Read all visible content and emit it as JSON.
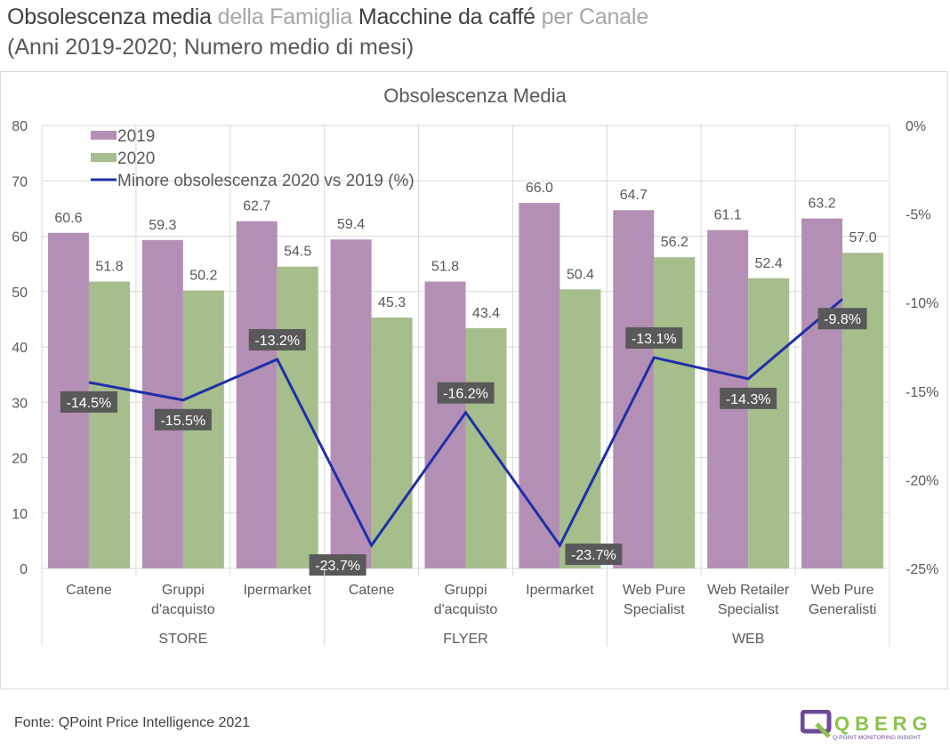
{
  "header": {
    "title_parts": [
      {
        "text": "Obsolescenza media",
        "style": "bold"
      },
      {
        "text": " della Famiglia ",
        "style": "light"
      },
      {
        "text": "Macchine da caffé",
        "style": "bold"
      },
      {
        "text": " per Canale",
        "style": "light"
      }
    ],
    "subtitle": "(Anni 2019-2020; Numero medio di mesi)"
  },
  "footer": {
    "source": "Fonte: QPoint Price Intelligence 2021",
    "logo_text": "QBERG",
    "logo_tagline": "Q-POINT MONITORING INSIGHT"
  },
  "colors": {
    "series_2019": "#b48fb5",
    "series_2020": "#a6bd8c",
    "line": "#1f2fa8",
    "label_box": "#595959",
    "grid": "#d9d9d9"
  },
  "chart_data": {
    "type": "bar",
    "title": "Obsolescenza Media",
    "groups": [
      {
        "name": "STORE",
        "categories": [
          "Catene",
          "Gruppi d'acquisto",
          "Ipermarket"
        ]
      },
      {
        "name": "FLYER",
        "categories": [
          "Catene",
          "Gruppi d'acquisto",
          "Ipermarket"
        ]
      },
      {
        "name": "WEB",
        "categories": [
          "Web Pure Specialist",
          "Web Retailer Specialist",
          "Web Pure Generalisti"
        ]
      }
    ],
    "categories": [
      [
        "Catene"
      ],
      [
        "Gruppi",
        "d'acquisto"
      ],
      [
        "Ipermarket"
      ],
      [
        "Catene"
      ],
      [
        "Gruppi",
        "d'acquisto"
      ],
      [
        "Ipermarket"
      ],
      [
        "Web Pure",
        "Specialist"
      ],
      [
        "Web Retailer",
        "Specialist"
      ],
      [
        "Web Pure",
        "Generalisti"
      ]
    ],
    "series": [
      {
        "name": "2019",
        "type": "bar",
        "axis": "left",
        "values": [
          60.6,
          59.3,
          62.7,
          59.4,
          51.8,
          66.0,
          64.7,
          61.1,
          63.2
        ],
        "labels": [
          "60.6",
          "59.3",
          "62.7",
          "59.4",
          "51.8",
          "66.0",
          "64.7",
          "61.1",
          "63.2"
        ]
      },
      {
        "name": "2020",
        "type": "bar",
        "axis": "left",
        "values": [
          51.8,
          50.2,
          54.5,
          45.3,
          43.4,
          50.4,
          56.2,
          52.4,
          57.0
        ],
        "labels": [
          "51.8",
          "50.2",
          "54.5",
          "45.3",
          "43.4",
          "50.4",
          "56.2",
          "52.4",
          "57.0"
        ]
      },
      {
        "name": "Minore obsolescenza 2020 vs 2019 (%)",
        "type": "line",
        "axis": "right",
        "values": [
          -14.5,
          -15.5,
          -13.2,
          -23.7,
          -16.2,
          -23.7,
          -13.1,
          -14.3,
          -9.8
        ],
        "labels": [
          "-14.5%",
          "-15.5%",
          "-13.2%",
          "-23.7%",
          "-16.2%",
          "-23.7%",
          "-13.1%",
          "-14.3%",
          "-9.8%"
        ]
      }
    ],
    "label_positions": [
      "below",
      "below",
      "above",
      "below-left",
      "above",
      "below-right",
      "above",
      "below",
      "below"
    ],
    "y_left": {
      "min": 0,
      "max": 80,
      "ticks": [
        0,
        10,
        20,
        30,
        40,
        50,
        60,
        70,
        80
      ],
      "tick_labels": [
        "0",
        "10",
        "20",
        "30",
        "40",
        "50",
        "60",
        "70",
        "80"
      ]
    },
    "y_right": {
      "min": -25,
      "max": 0,
      "ticks": [
        0,
        -5,
        -10,
        -15,
        -20,
        -25
      ],
      "tick_labels": [
        "0%",
        "-5%",
        "-10%",
        "-15%",
        "-20%",
        "-25%"
      ]
    },
    "legend": {
      "position": "top-left",
      "entries": [
        "2019",
        "2020",
        "Minore obsolescenza 2020 vs 2019 (%)"
      ]
    },
    "grid": true
  }
}
